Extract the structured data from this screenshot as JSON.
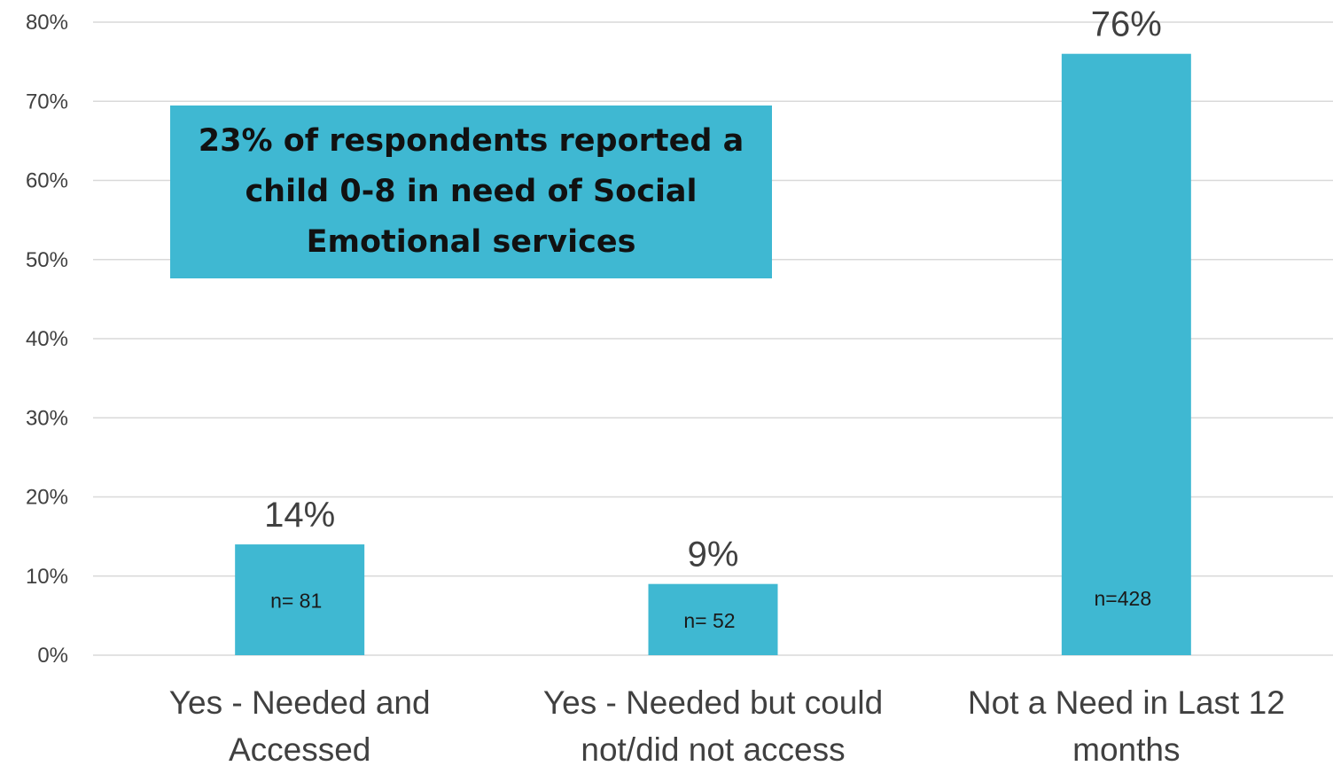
{
  "chart_data": {
    "type": "bar",
    "categories": [
      [
        "Yes - Needed and",
        "Accessed"
      ],
      [
        "Yes - Needed but could",
        "not/did not access"
      ],
      [
        "Not a Need in Last 12",
        "months"
      ]
    ],
    "values": [
      14,
      9,
      76
    ],
    "value_labels": [
      "14%",
      "9%",
      "76%"
    ],
    "sample_labels": [
      "n= 81",
      "n= 52",
      "n=428"
    ],
    "yticks": [
      "0%",
      "10%",
      "20%",
      "30%",
      "40%",
      "50%",
      "60%",
      "70%",
      "80%"
    ],
    "ylim": [
      0,
      80
    ],
    "grid": true,
    "bar_color": "#3fb8d2"
  },
  "annotation": {
    "text": "23% of respondents reported a child 0-8 in need of Social Emotional services"
  }
}
